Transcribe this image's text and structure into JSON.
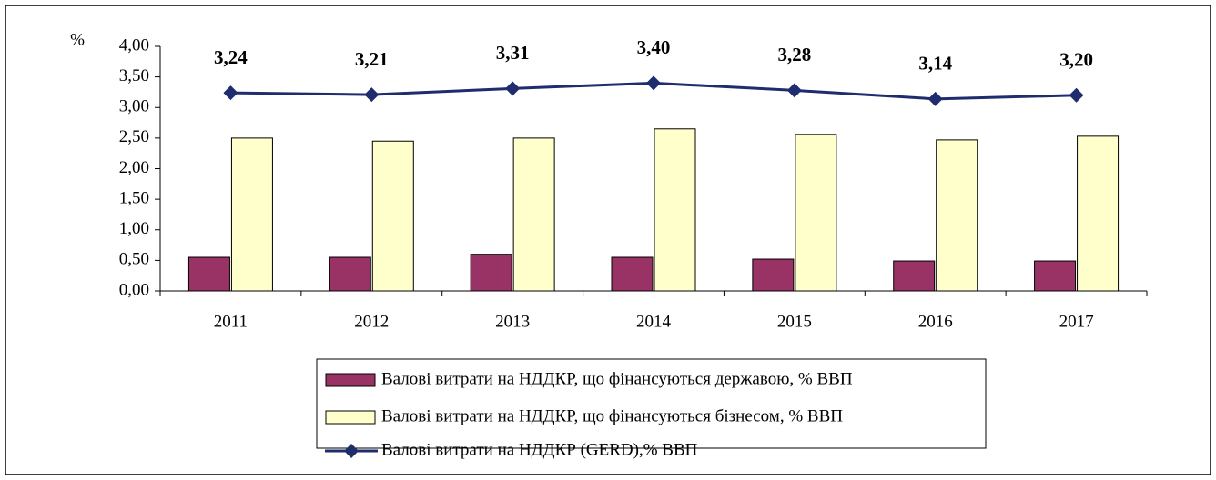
{
  "chart_data": {
    "type": "bar",
    "y_label": "%",
    "categories": [
      "2011",
      "2012",
      "2013",
      "2014",
      "2015",
      "2016",
      "2017"
    ],
    "series": [
      {
        "name": "Валові витрати на НДДКР, що фінансуються державою, % ВВП",
        "color": "#993366",
        "values": [
          0.55,
          0.55,
          0.6,
          0.55,
          0.52,
          0.49,
          0.49
        ]
      },
      {
        "name": "Валові витрати на НДДКР, що фінансуються бізнесом, % ВВП",
        "color": "#ffffcc",
        "values": [
          2.5,
          2.45,
          2.5,
          2.65,
          2.56,
          2.47,
          2.53
        ]
      },
      {
        "name": "Валові витрати на НДДКР (GERD),% ВВП",
        "color": "#1f2d6e",
        "type": "line",
        "values": [
          3.24,
          3.21,
          3.31,
          3.4,
          3.28,
          3.14,
          3.2
        ],
        "value_labels": [
          "3,24",
          "3,21",
          "3,31",
          "3,40",
          "3,28",
          "3,14",
          "3,20"
        ]
      }
    ],
    "ylim": [
      0,
      4
    ],
    "yticks": [
      {
        "value": 0,
        "label": "0,00"
      },
      {
        "value": 0.5,
        "label": "0,50"
      },
      {
        "value": 1,
        "label": "1,00"
      },
      {
        "value": 1.5,
        "label": "1,50"
      },
      {
        "value": 2,
        "label": "2,00"
      },
      {
        "value": 2.5,
        "label": "2,50"
      },
      {
        "value": 3,
        "label": "3,00"
      },
      {
        "value": 3.5,
        "label": "3,50"
      },
      {
        "value": 4,
        "label": "4,00"
      }
    ],
    "legend": "bottom"
  }
}
